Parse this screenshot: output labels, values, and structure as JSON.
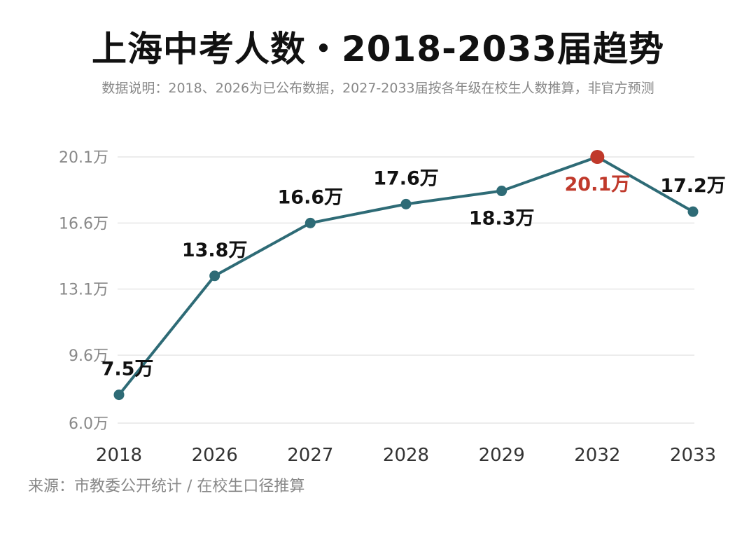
{
  "title": "上海中考人数・2018-2033届趋势",
  "subtitle": "数据说明：2018、2026为已公布数据，2027-2033届按各年级在校生人数推算，非官方预测",
  "source": "来源：市教委公开统计 / 在校生口径推算",
  "colors": {
    "line": "#2e6b76",
    "highlight": "#c0392b",
    "grid": "#e6e6e6"
  },
  "chart_data": {
    "type": "line",
    "unit": "万",
    "categories": [
      "2018",
      "2026",
      "2027",
      "2028",
      "2029",
      "2032",
      "2033"
    ],
    "values": [
      7.5,
      13.8,
      16.6,
      17.6,
      18.3,
      20.1,
      17.2
    ],
    "point_labels": [
      "7.5万",
      "13.8万",
      "16.6万",
      "17.6万",
      "18.3万",
      "20.1万",
      "17.2万"
    ],
    "highlight_index": 5,
    "yticks": [
      6.0,
      9.6,
      13.1,
      16.6,
      20.1
    ],
    "ytick_labels": [
      "6.0万",
      "9.6万",
      "13.1万",
      "16.6万",
      "20.1万"
    ],
    "ylim": [
      6.0,
      20.1
    ],
    "grid": true
  }
}
